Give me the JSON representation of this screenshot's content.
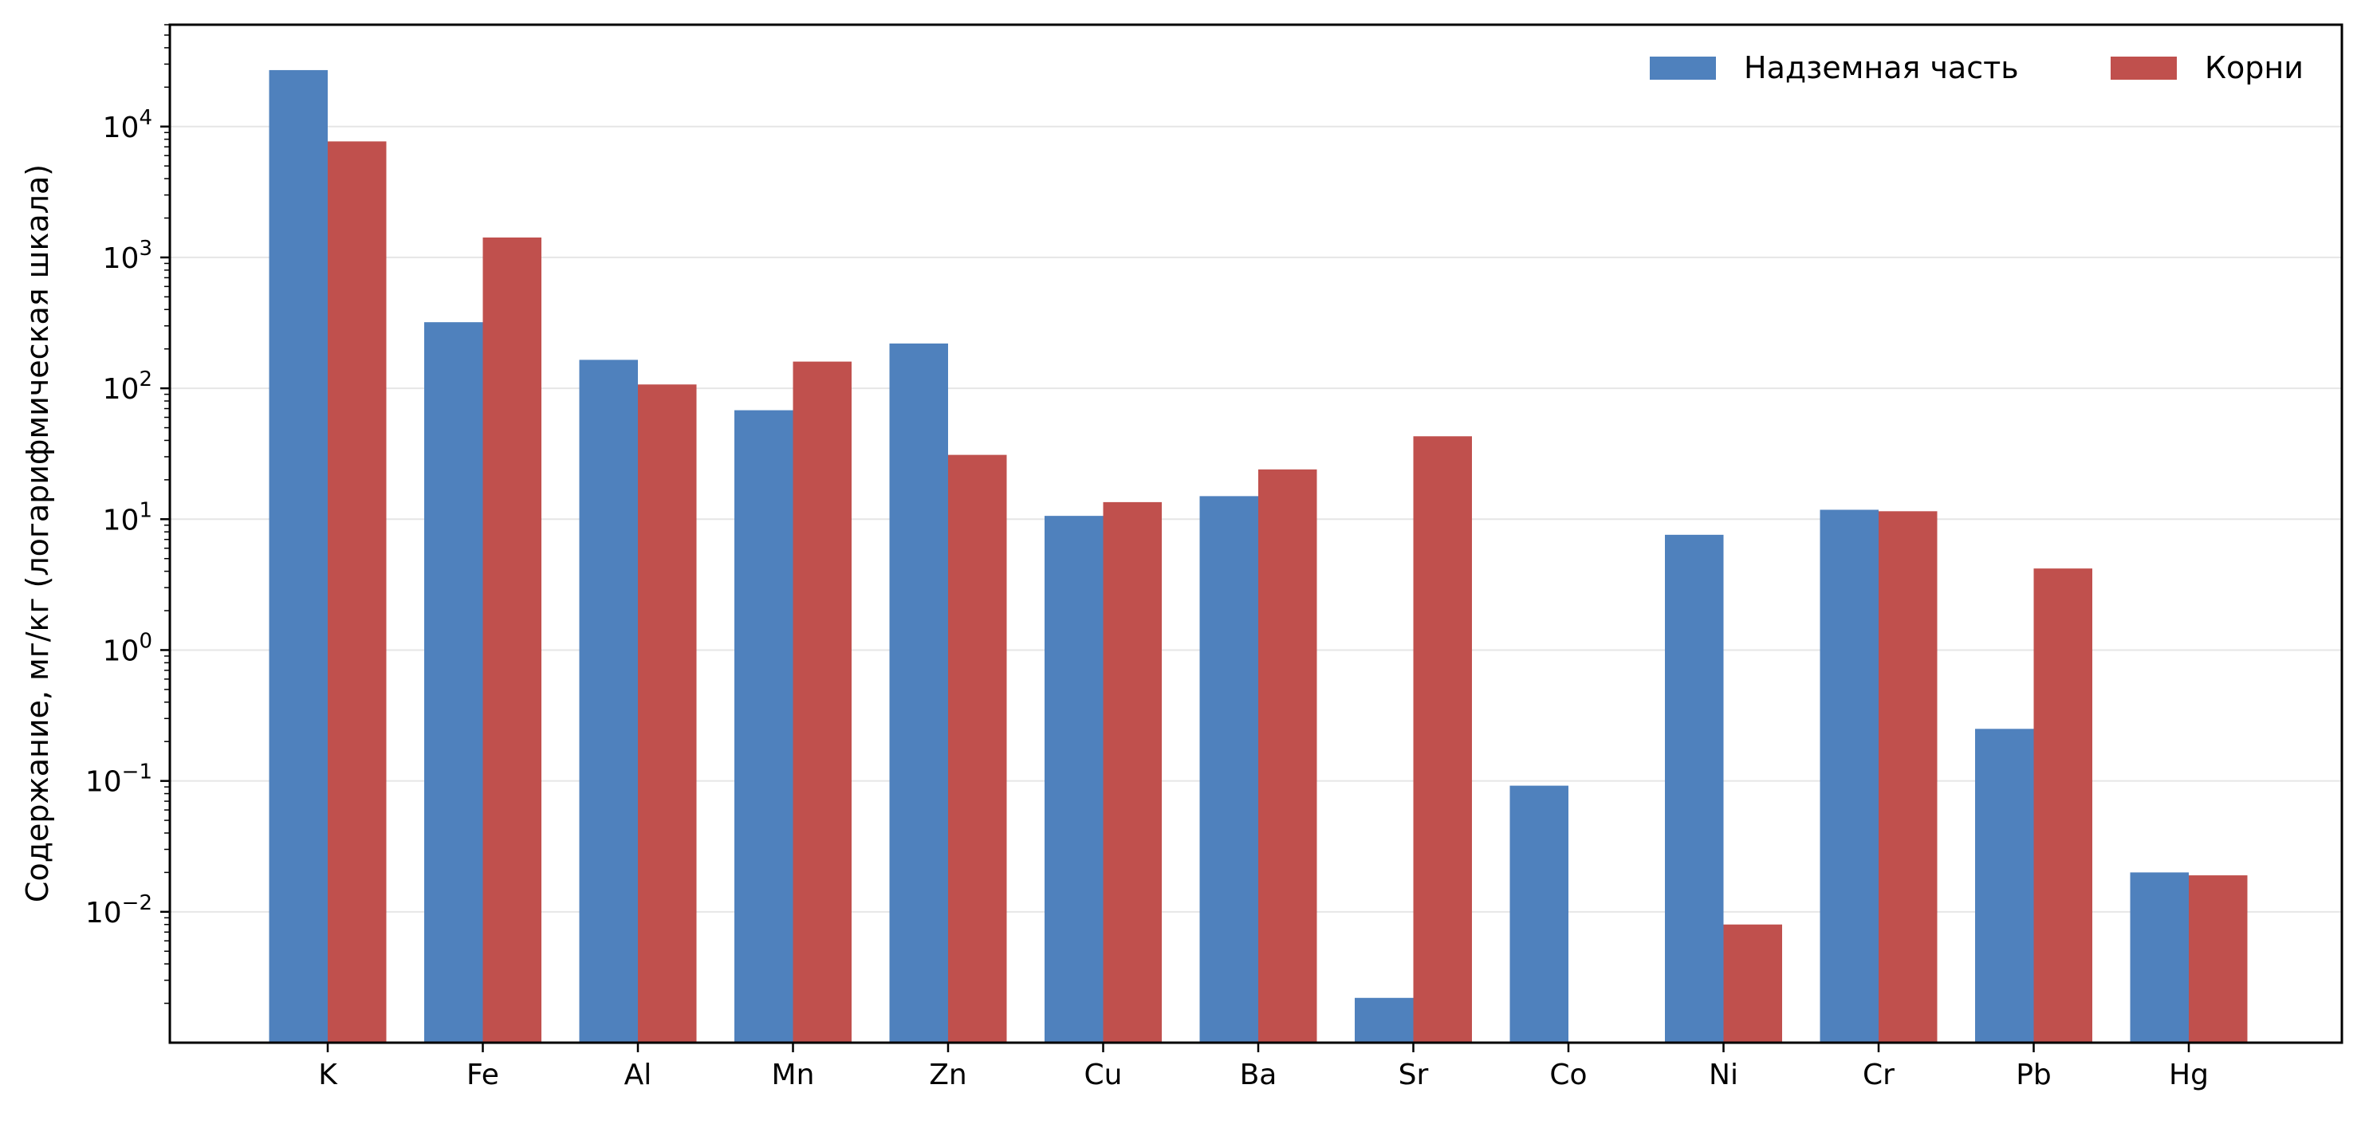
{
  "chart_data": {
    "type": "bar",
    "categories": [
      "K",
      "Fe",
      "Al",
      "Mn",
      "Zn",
      "Cu",
      "Ba",
      "Sr",
      "Co",
      "Ni",
      "Cr",
      "Pb",
      "Hg"
    ],
    "series": [
      {
        "name": "Надземная часть",
        "color": "#4f81bd",
        "values": [
          27000,
          320,
          165,
          68,
          220,
          10.6,
          15,
          0.0022,
          0.092,
          7.6,
          11.8,
          0.25,
          0.02
        ]
      },
      {
        "name": "Корни",
        "color": "#c0504d",
        "values": [
          7700,
          1420,
          107,
          160,
          31,
          13.5,
          24,
          43,
          null,
          0.008,
          11.5,
          4.2,
          0.019
        ]
      }
    ],
    "ylabel": "Содержание, мг/кг (логарифмическая шкала)",
    "xlabel": "",
    "yscale": "log",
    "ylim": [
      0.001,
      60000
    ],
    "yticks": [
      {
        "value": 0.01,
        "mantissa": "10",
        "exponent": "−2"
      },
      {
        "value": 0.1,
        "mantissa": "10",
        "exponent": "−1"
      },
      {
        "value": 1,
        "mantissa": "10",
        "exponent": "0"
      },
      {
        "value": 10,
        "mantissa": "10",
        "exponent": "1"
      },
      {
        "value": 100,
        "mantissa": "10",
        "exponent": "2"
      },
      {
        "value": 1000,
        "mantissa": "10",
        "exponent": "3"
      },
      {
        "value": 10000,
        "mantissa": "10",
        "exponent": "4"
      }
    ],
    "grid": "horizontal",
    "legend": "top-right"
  }
}
